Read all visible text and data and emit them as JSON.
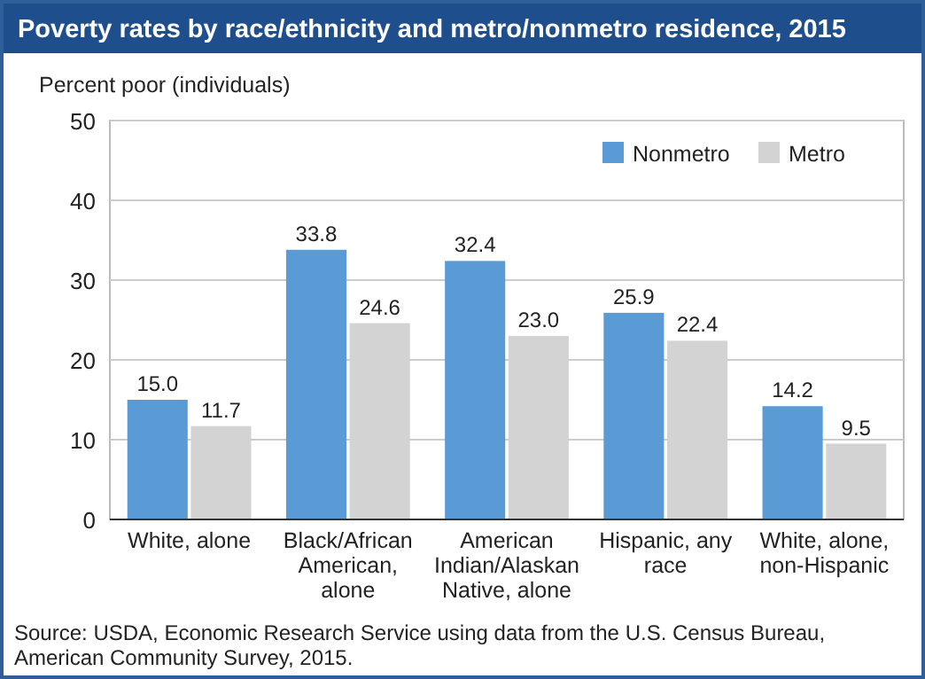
{
  "chart_data": {
    "type": "bar",
    "title": "Poverty rates by race/ethnicity and metro/nonmetro residence, 2015",
    "ylabel": "Percent poor (individuals)",
    "categories": [
      "White, alone",
      "Black/African American, alone",
      "American Indian/Alaskan Native, alone",
      "Hispanic, any race",
      "White, alone, non-Hispanic"
    ],
    "series": [
      {
        "name": "Nonmetro",
        "color": "#5b9bd5",
        "values": [
          15.0,
          33.8,
          32.4,
          25.9,
          14.2
        ],
        "value_labels": [
          "15.0",
          "33.8",
          "32.4",
          "25.9",
          "14.2"
        ]
      },
      {
        "name": "Metro",
        "color": "#d3d3d3",
        "values": [
          11.7,
          24.6,
          23.0,
          22.4,
          9.5
        ],
        "value_labels": [
          "11.7",
          "24.6",
          "23.0",
          "22.4",
          "9.5"
        ]
      }
    ],
    "ylim": [
      0,
      50
    ],
    "yticks": [
      0,
      10,
      20,
      30,
      40,
      50
    ],
    "grid": "y",
    "legend": "top right",
    "annotations": [
      "Source: USDA, Economic Research Service using data from the U.S. Census Bureau, American Community Survey, 2015."
    ]
  }
}
